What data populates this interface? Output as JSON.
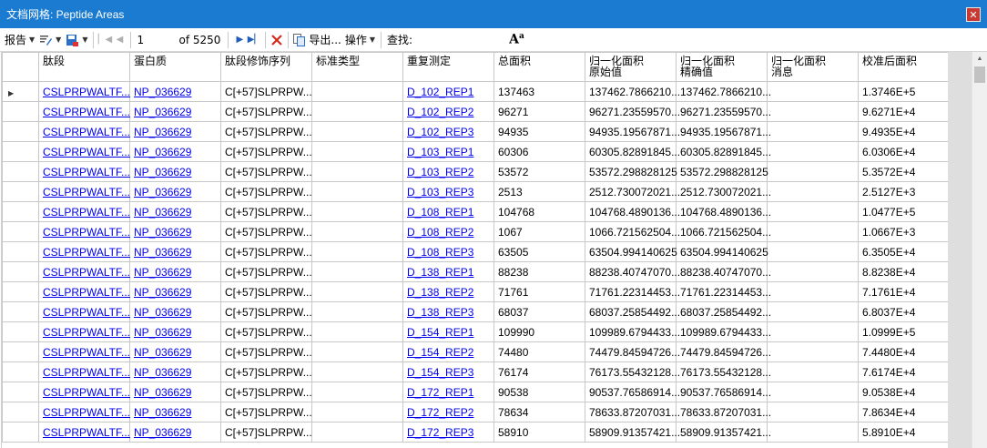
{
  "window": {
    "title": "文档网格: Peptide Areas",
    "close_glyph": "✕"
  },
  "toolbar": {
    "report_label": "报告",
    "position_value": "1",
    "of_label": "of 5250",
    "export_label": "导出...",
    "actions_label": "操作",
    "find_label": "查找:",
    "font_glyph": "A",
    "font_sup": "a"
  },
  "columns": [
    "肽段",
    "蛋白质",
    "肽段修饰序列",
    "标准类型",
    "重复测定",
    "总面积",
    "归一化面积\n原始值",
    "归一化面积\n精确值",
    "归一化面积\n消息",
    "校准后面积"
  ],
  "rows": [
    [
      "CSLPRPWALTF...",
      "NP_036629",
      "C[+57]SLPRPW...",
      "",
      "D_102_REP1",
      "137463",
      "137462.7866210...",
      "137462.7866210...",
      "",
      "1.3746E+5"
    ],
    [
      "CSLPRPWALTF...",
      "NP_036629",
      "C[+57]SLPRPW...",
      "",
      "D_102_REP2",
      "96271",
      "96271.23559570...",
      "96271.23559570...",
      "",
      "9.6271E+4"
    ],
    [
      "CSLPRPWALTF...",
      "NP_036629",
      "C[+57]SLPRPW...",
      "",
      "D_102_REP3",
      "94935",
      "94935.19567871...",
      "94935.19567871...",
      "",
      "9.4935E+4"
    ],
    [
      "CSLPRPWALTF...",
      "NP_036629",
      "C[+57]SLPRPW...",
      "",
      "D_103_REP1",
      "60306",
      "60305.82891845...",
      "60305.82891845...",
      "",
      "6.0306E+4"
    ],
    [
      "CSLPRPWALTF...",
      "NP_036629",
      "C[+57]SLPRPW...",
      "",
      "D_103_REP2",
      "53572",
      "53572.298828125",
      "53572.298828125",
      "",
      "5.3572E+4"
    ],
    [
      "CSLPRPWALTF...",
      "NP_036629",
      "C[+57]SLPRPW...",
      "",
      "D_103_REP3",
      "2513",
      "2512.730072021...",
      "2512.730072021...",
      "",
      "2.5127E+3"
    ],
    [
      "CSLPRPWALTF...",
      "NP_036629",
      "C[+57]SLPRPW...",
      "",
      "D_108_REP1",
      "104768",
      "104768.4890136...",
      "104768.4890136...",
      "",
      "1.0477E+5"
    ],
    [
      "CSLPRPWALTF...",
      "NP_036629",
      "C[+57]SLPRPW...",
      "",
      "D_108_REP2",
      "1067",
      "1066.721562504...",
      "1066.721562504...",
      "",
      "1.0667E+3"
    ],
    [
      "CSLPRPWALTF...",
      "NP_036629",
      "C[+57]SLPRPW...",
      "",
      "D_108_REP3",
      "63505",
      "63504.994140625",
      "63504.994140625",
      "",
      "6.3505E+4"
    ],
    [
      "CSLPRPWALTF...",
      "NP_036629",
      "C[+57]SLPRPW...",
      "",
      "D_138_REP1",
      "88238",
      "88238.40747070...",
      "88238.40747070...",
      "",
      "8.8238E+4"
    ],
    [
      "CSLPRPWALTF...",
      "NP_036629",
      "C[+57]SLPRPW...",
      "",
      "D_138_REP2",
      "71761",
      "71761.22314453...",
      "71761.22314453...",
      "",
      "7.1761E+4"
    ],
    [
      "CSLPRPWALTF...",
      "NP_036629",
      "C[+57]SLPRPW...",
      "",
      "D_138_REP3",
      "68037",
      "68037.25854492...",
      "68037.25854492...",
      "",
      "6.8037E+4"
    ],
    [
      "CSLPRPWALTF...",
      "NP_036629",
      "C[+57]SLPRPW...",
      "",
      "D_154_REP1",
      "109990",
      "109989.6794433...",
      "109989.6794433...",
      "",
      "1.0999E+5"
    ],
    [
      "CSLPRPWALTF...",
      "NP_036629",
      "C[+57]SLPRPW...",
      "",
      "D_154_REP2",
      "74480",
      "74479.84594726...",
      "74479.84594726...",
      "",
      "7.4480E+4"
    ],
    [
      "CSLPRPWALTF...",
      "NP_036629",
      "C[+57]SLPRPW...",
      "",
      "D_154_REP3",
      "76174",
      "76173.55432128...",
      "76173.55432128...",
      "",
      "7.6174E+4"
    ],
    [
      "CSLPRPWALTF...",
      "NP_036629",
      "C[+57]SLPRPW...",
      "",
      "D_172_REP1",
      "90538",
      "90537.76586914...",
      "90537.76586914...",
      "",
      "9.0538E+4"
    ],
    [
      "CSLPRPWALTF...",
      "NP_036629",
      "C[+57]SLPRPW...",
      "",
      "D_172_REP2",
      "78634",
      "78633.87207031...",
      "78633.87207031...",
      "",
      "7.8634E+4"
    ],
    [
      "CSLPRPWALTF...",
      "NP_036629",
      "C[+57]SLPRPW...",
      "",
      "D_172_REP3",
      "58910",
      "58909.91357421...",
      "58909.91357421...",
      "",
      "5.8910E+4"
    ]
  ]
}
